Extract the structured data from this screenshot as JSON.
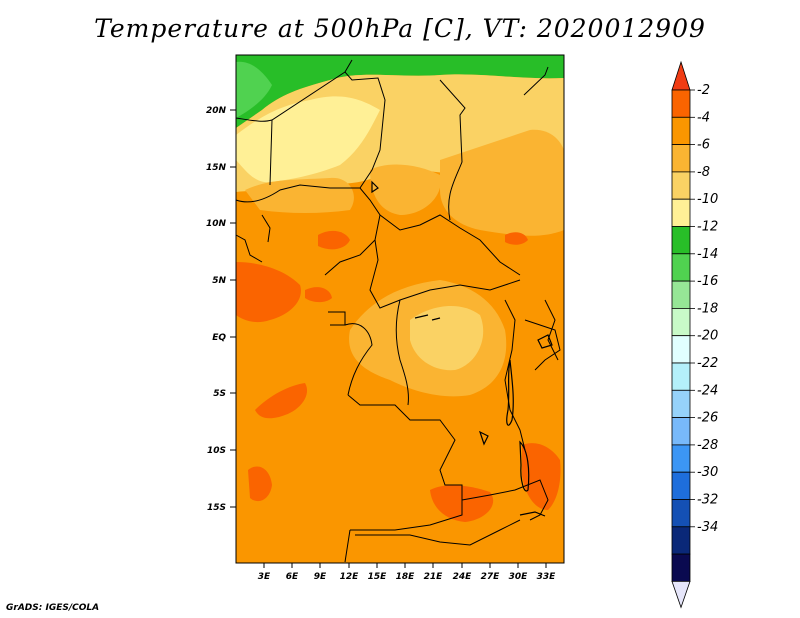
{
  "title": "Temperature at 500hPa [C], VT: 2020012909",
  "footer": "GrADS: IGES/COLA",
  "map": {
    "lat_labels": [
      "20N",
      "15N",
      "10N",
      "5N",
      "EQ",
      "5S",
      "10S",
      "15S"
    ],
    "lon_labels": [
      "3E",
      "6E",
      "9E",
      "12E",
      "15E",
      "18E",
      "21E",
      "24E",
      "27E",
      "30E",
      "33E"
    ]
  },
  "colorbar": {
    "labels": [
      "-2",
      "-4",
      "-6",
      "-8",
      "-10",
      "-12",
      "-14",
      "-16",
      "-18",
      "-20",
      "-22",
      "-24",
      "-26",
      "-28",
      "-30",
      "-32",
      "-34"
    ],
    "colors": [
      "#f03c14",
      "#fa6400",
      "#fa9600",
      "#fab432",
      "#fad264",
      "#fff096",
      "#28be28",
      "#50d250",
      "#96e696",
      "#c8fac8",
      "#e1ffff",
      "#b4f0fa",
      "#96d2fa",
      "#78b9fa",
      "#3c96f5",
      "#1e6edc",
      "#1450b4",
      "#0a2878",
      "#0a0a50",
      "#e6e6fa"
    ]
  },
  "colors": {
    "orange": "#fa9600",
    "dark_orange": "#fa6400",
    "light_orange": "#fab432",
    "pale_yellow": "#fad264",
    "cream": "#fff096",
    "green": "#28be28",
    "light_green": "#50d250"
  }
}
